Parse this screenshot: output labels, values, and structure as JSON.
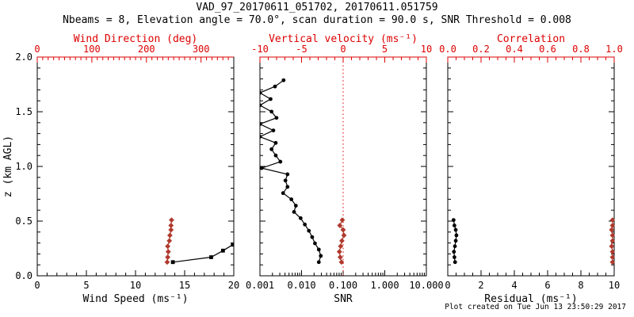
{
  "colors": {
    "black": "#000000",
    "axis_red": "#dd0000",
    "data_red": "#b03a2e",
    "background": "#ffffff"
  },
  "chart_data": {
    "type": "line",
    "title": "VAD_97_20170611_051702, 20170611.051759",
    "subtitle": "Nbeams = 8, Elevation angle = 70.0°, scan duration = 90.0 s, SNR Threshold = 0.008",
    "footer_note": "Plot created on Tue Jun 13 23:50:29 2017",
    "y_axis": {
      "label": "z (km AGL)",
      "lim": [
        0,
        2
      ],
      "ticks": [
        0,
        0.5,
        1,
        1.5,
        2
      ],
      "tick_labels": [
        "0.0",
        "0.5",
        "1.0",
        "1.5",
        "2.0"
      ],
      "minor": 0.1
    },
    "panels": [
      {
        "id": "wind",
        "bottom_axis": {
          "label": "Wind Speed (ms⁻¹)",
          "scale": "linear",
          "lim": [
            0,
            20
          ],
          "ticks": [
            0,
            5,
            10,
            15,
            20
          ],
          "tick_labels": [
            "0",
            "5",
            "10",
            "15",
            "20"
          ],
          "minor": 1
        },
        "top_axis": {
          "label": "Wind Direction (deg)",
          "scale": "linear",
          "lim": [
            0,
            360
          ],
          "ticks": [
            0,
            100,
            200,
            300
          ],
          "tick_labels": [
            "0",
            "100",
            "200",
            "300"
          ],
          "minor": 10
        },
        "series": [
          {
            "name": "wind-speed",
            "axis": "bottom",
            "color": "black",
            "marker": "square",
            "points": [
              [
                13.8,
                0.125
              ],
              [
                17.7,
                0.17
              ],
              [
                18.9,
                0.23
              ],
              [
                19.9,
                0.285
              ],
              [
                22.0,
                0.34
              ]
            ]
          },
          {
            "name": "wind-direction",
            "axis": "top",
            "color": "data_red",
            "marker": "diamond",
            "points": [
              [
                238,
                0.125
              ],
              [
                239,
                0.17
              ],
              [
                240,
                0.22
              ],
              [
                239,
                0.27
              ],
              [
                242,
                0.32
              ],
              [
                243,
                0.37
              ],
              [
                245,
                0.42
              ],
              [
                245,
                0.46
              ],
              [
                246,
                0.51
              ]
            ]
          }
        ]
      },
      {
        "id": "snr",
        "bottom_axis": {
          "label": "SNR",
          "scale": "log",
          "lim": [
            0.001,
            10
          ],
          "ticks": [
            0.001,
            0.01,
            0.1,
            1,
            10
          ],
          "tick_labels": [
            "0.001",
            "0.010",
            "0.100",
            "1.000",
            "10.000"
          ]
        },
        "top_axis": {
          "label": "Vertical velocity (ms⁻¹)",
          "scale": "linear",
          "lim": [
            -10,
            10
          ],
          "ticks": [
            -10,
            -5,
            0,
            5,
            10
          ],
          "tick_labels": [
            "-10",
            "-5",
            "0",
            "5",
            "10"
          ],
          "minor": 1,
          "refline": 0
        },
        "series": [
          {
            "name": "snr-profile",
            "axis": "bottom",
            "color": "black",
            "marker": "circle",
            "points": [
              [
                0.026,
                0.125
              ],
              [
                0.029,
                0.182
              ],
              [
                0.026,
                0.24
              ],
              [
                0.021,
                0.297
              ],
              [
                0.018,
                0.354
              ],
              [
                0.015,
                0.412
              ],
              [
                0.012,
                0.469
              ],
              [
                0.0095,
                0.527
              ],
              [
                0.0066,
                0.584
              ],
              [
                0.0073,
                0.641
              ],
              [
                0.0057,
                0.699
              ],
              [
                0.0036,
                0.756
              ],
              [
                0.0046,
                0.813
              ],
              [
                0.0041,
                0.871
              ],
              [
                0.0046,
                0.928
              ],
              [
                0.0011,
                0.985
              ],
              [
                0.0031,
                1.043
              ],
              [
                0.0024,
                1.1
              ],
              [
                0.0019,
                1.157
              ],
              [
                0.0024,
                1.215
              ],
              [
                0.001,
                1.272
              ],
              [
                0.0021,
                1.329
              ],
              [
                0.001,
                1.387
              ],
              [
                0.0025,
                1.444
              ],
              [
                0.0019,
                1.501
              ],
              [
                0.001,
                1.559
              ],
              [
                0.0018,
                1.616
              ],
              [
                0.001,
                1.673
              ],
              [
                0.0023,
                1.731
              ],
              [
                0.0037,
                1.788
              ]
            ]
          },
          {
            "name": "vertical-velocity",
            "axis": "top",
            "color": "data_red",
            "marker": "diamond",
            "points": [
              [
                -0.2,
                0.125
              ],
              [
                -0.35,
                0.17
              ],
              [
                -0.45,
                0.22
              ],
              [
                -0.3,
                0.27
              ],
              [
                -0.15,
                0.32
              ],
              [
                0.1,
                0.37
              ],
              [
                0.0,
                0.42
              ],
              [
                -0.4,
                0.46
              ],
              [
                -0.1,
                0.51
              ]
            ]
          }
        ]
      },
      {
        "id": "residual",
        "bottom_axis": {
          "label": "Residual (ms⁻¹)",
          "scale": "linear",
          "lim": [
            0,
            10
          ],
          "ticks": [
            0,
            2,
            4,
            6,
            8,
            10
          ],
          "tick_labels": [
            "0",
            "2",
            "4",
            "6",
            "8",
            "10"
          ],
          "minor": 0.5
        },
        "top_axis": {
          "label": "Correlation",
          "scale": "linear",
          "lim": [
            0,
            1
          ],
          "ticks": [
            0,
            0.2,
            0.4,
            0.6,
            0.8,
            1
          ],
          "tick_labels": [
            "0.0",
            "0.2",
            "0.4",
            "0.6",
            "0.8",
            "1.0"
          ],
          "minor": 0.05
        },
        "series": [
          {
            "name": "residual-profile",
            "axis": "bottom",
            "color": "black",
            "marker": "circle",
            "points": [
              [
                0.44,
                0.125
              ],
              [
                0.4,
                0.17
              ],
              [
                0.37,
                0.22
              ],
              [
                0.43,
                0.27
              ],
              [
                0.48,
                0.32
              ],
              [
                0.52,
                0.37
              ],
              [
                0.48,
                0.42
              ],
              [
                0.4,
                0.46
              ],
              [
                0.35,
                0.51
              ]
            ]
          },
          {
            "name": "correlation-profile",
            "axis": "top",
            "color": "data_red",
            "marker": "diamond",
            "points": [
              [
                0.99,
                0.125
              ],
              [
                0.99,
                0.17
              ],
              [
                0.99,
                0.22
              ],
              [
                0.985,
                0.27
              ],
              [
                0.99,
                0.32
              ],
              [
                0.99,
                0.37
              ],
              [
                0.985,
                0.42
              ],
              [
                0.99,
                0.46
              ],
              [
                0.99,
                0.51
              ]
            ]
          }
        ]
      }
    ]
  }
}
